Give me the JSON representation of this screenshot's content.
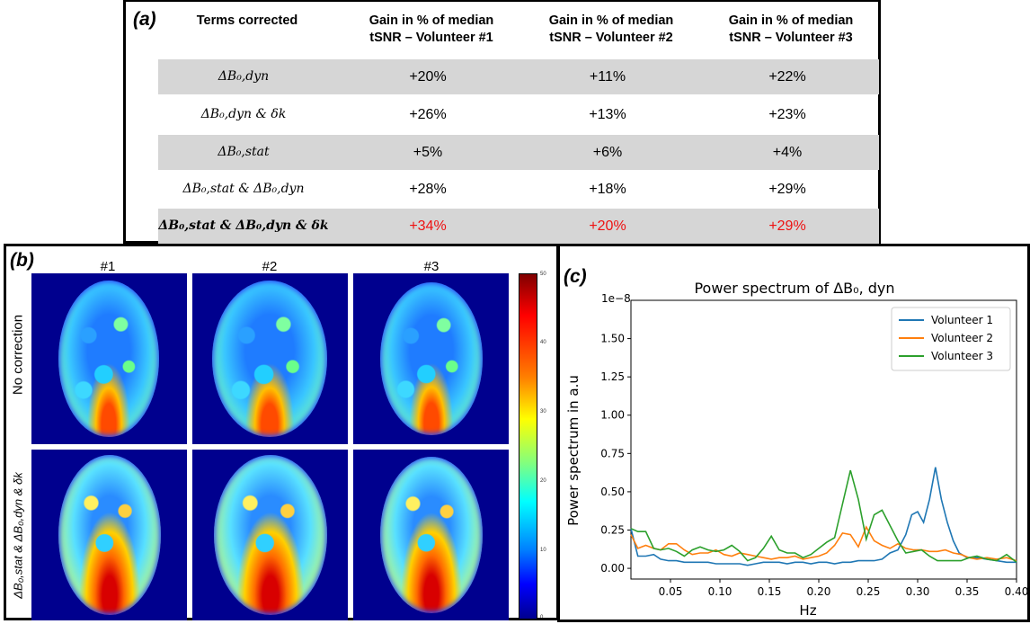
{
  "panel_a": {
    "tag": "(a)",
    "headers": [
      {
        "line1": "Terms corrected",
        "line2": ""
      },
      {
        "line1": "Gain in % of median",
        "line2": "tSNR – Volunteer #1"
      },
      {
        "line1": "Gain in % of median",
        "line2": "tSNR – Volunteer #2"
      },
      {
        "line1": "Gain in % of median",
        "line2": "tSNR – Volunteer #3"
      }
    ],
    "rows": [
      {
        "term": "ΔB₀,dyn",
        "v1": "+20%",
        "v2": "+11%",
        "v3": "+22%"
      },
      {
        "term": "ΔB₀,dyn & δk",
        "v1": "+26%",
        "v2": "+13%",
        "v3": "+23%"
      },
      {
        "term": "ΔB₀,stat",
        "v1": "+5%",
        "v2": "+6%",
        "v3": "+4%"
      },
      {
        "term": "ΔB₀,stat & ΔB₀,dyn",
        "v1": "+28%",
        "v2": "+18%",
        "v3": "+29%"
      },
      {
        "term": "ΔB₀,stat & ΔB₀,dyn & δk",
        "v1": "+34%",
        "v2": "+20%",
        "v3": "+29%"
      }
    ],
    "highlight_color": "#ee1111"
  },
  "panel_b": {
    "tag": "(b)",
    "columns": [
      "#1",
      "#2",
      "#3"
    ],
    "row_labels": [
      "No correction",
      "ΔB₀,stat & ΔB₀,dyn & δk"
    ],
    "colorbar_ticks": [
      "50",
      "40",
      "30",
      "20",
      "10",
      "0"
    ]
  },
  "panel_c": {
    "tag": "(c)"
  },
  "chart_data": {
    "type": "line",
    "title": "Power spectrum of ΔB₀, dyn",
    "xlabel": "Hz",
    "ylabel": "Power spectrum in a.u",
    "y_multiplier_label": "1e−8",
    "xlim": [
      0.01,
      0.4
    ],
    "ylim": [
      -0.07,
      1.75
    ],
    "x_ticks": [
      0.05,
      0.1,
      0.15,
      0.2,
      0.25,
      0.3,
      0.35,
      0.4
    ],
    "x_tick_labels": [
      "0.05",
      "0.10",
      "0.15",
      "0.20",
      "0.25",
      "0.30",
      "0.35",
      "0.40"
    ],
    "y_ticks": [
      0.0,
      0.25,
      0.5,
      0.75,
      1.0,
      1.25,
      1.5
    ],
    "y_tick_labels": [
      "0.00",
      "0.25",
      "0.50",
      "0.75",
      "1.00",
      "1.25",
      "1.50"
    ],
    "legend_position": "top-right",
    "grid": false,
    "series": [
      {
        "name": "Volunteer 1",
        "color": "#1f77b4",
        "x": [
          0.01,
          0.017,
          0.025,
          0.033,
          0.04,
          0.048,
          0.056,
          0.064,
          0.072,
          0.08,
          0.088,
          0.096,
          0.104,
          0.112,
          0.12,
          0.128,
          0.136,
          0.144,
          0.152,
          0.16,
          0.168,
          0.176,
          0.184,
          0.192,
          0.2,
          0.208,
          0.216,
          0.224,
          0.232,
          0.24,
          0.248,
          0.256,
          0.264,
          0.272,
          0.28,
          0.288,
          0.294,
          0.3,
          0.306,
          0.312,
          0.318,
          0.324,
          0.33,
          0.336,
          0.342,
          0.35,
          0.36,
          0.37,
          0.38,
          0.39,
          0.4
        ],
        "y": [
          0.26,
          0.08,
          0.08,
          0.09,
          0.06,
          0.05,
          0.05,
          0.04,
          0.04,
          0.04,
          0.04,
          0.03,
          0.03,
          0.03,
          0.03,
          0.02,
          0.03,
          0.04,
          0.04,
          0.04,
          0.03,
          0.04,
          0.04,
          0.03,
          0.04,
          0.04,
          0.03,
          0.04,
          0.04,
          0.05,
          0.05,
          0.05,
          0.06,
          0.1,
          0.12,
          0.22,
          0.35,
          0.37,
          0.3,
          0.45,
          0.66,
          0.45,
          0.3,
          0.18,
          0.1,
          0.07,
          0.07,
          0.06,
          0.05,
          0.04,
          0.04
        ]
      },
      {
        "name": "Volunteer 2",
        "color": "#ff7f0e",
        "x": [
          0.01,
          0.017,
          0.025,
          0.033,
          0.04,
          0.048,
          0.056,
          0.064,
          0.072,
          0.08,
          0.088,
          0.096,
          0.104,
          0.112,
          0.12,
          0.128,
          0.136,
          0.144,
          0.152,
          0.16,
          0.168,
          0.176,
          0.184,
          0.192,
          0.2,
          0.208,
          0.216,
          0.224,
          0.232,
          0.24,
          0.248,
          0.256,
          0.264,
          0.272,
          0.28,
          0.288,
          0.296,
          0.304,
          0.312,
          0.32,
          0.328,
          0.336,
          0.344,
          0.352,
          0.36,
          0.37,
          0.38,
          0.39,
          0.4
        ],
        "y": [
          0.22,
          0.13,
          0.15,
          0.13,
          0.12,
          0.16,
          0.16,
          0.12,
          0.09,
          0.1,
          0.1,
          0.12,
          0.09,
          0.08,
          0.1,
          0.09,
          0.08,
          0.07,
          0.06,
          0.07,
          0.07,
          0.08,
          0.06,
          0.07,
          0.08,
          0.1,
          0.15,
          0.23,
          0.22,
          0.14,
          0.27,
          0.18,
          0.15,
          0.13,
          0.16,
          0.13,
          0.12,
          0.12,
          0.11,
          0.11,
          0.12,
          0.1,
          0.09,
          0.07,
          0.06,
          0.07,
          0.06,
          0.07,
          0.05
        ]
      },
      {
        "name": "Volunteer 3",
        "color": "#2ca02c",
        "x": [
          0.01,
          0.017,
          0.025,
          0.033,
          0.04,
          0.048,
          0.056,
          0.064,
          0.072,
          0.08,
          0.088,
          0.096,
          0.104,
          0.112,
          0.12,
          0.128,
          0.136,
          0.144,
          0.152,
          0.16,
          0.168,
          0.176,
          0.184,
          0.192,
          0.2,
          0.208,
          0.216,
          0.224,
          0.232,
          0.24,
          0.248,
          0.256,
          0.264,
          0.272,
          0.28,
          0.288,
          0.296,
          0.304,
          0.312,
          0.32,
          0.328,
          0.336,
          0.344,
          0.352,
          0.36,
          0.37,
          0.38,
          0.39,
          0.4
        ],
        "y": [
          0.26,
          0.24,
          0.24,
          0.13,
          0.12,
          0.13,
          0.11,
          0.08,
          0.12,
          0.14,
          0.12,
          0.11,
          0.12,
          0.15,
          0.11,
          0.05,
          0.07,
          0.13,
          0.21,
          0.12,
          0.1,
          0.1,
          0.07,
          0.09,
          0.13,
          0.17,
          0.2,
          0.42,
          0.64,
          0.45,
          0.19,
          0.35,
          0.38,
          0.28,
          0.18,
          0.1,
          0.11,
          0.12,
          0.08,
          0.05,
          0.05,
          0.05,
          0.05,
          0.07,
          0.08,
          0.06,
          0.05,
          0.09,
          0.04
        ]
      }
    ]
  }
}
